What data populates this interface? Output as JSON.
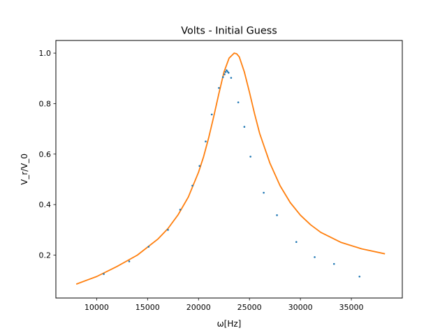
{
  "chart_data": {
    "type": "scatter",
    "title": "Volts - Initial Guess",
    "xlabel": "ω[Hz]",
    "ylabel": "V_r/V_0",
    "xlim": [
      6000,
      40000
    ],
    "ylim": [
      0.03,
      1.05
    ],
    "xticks": [
      10000,
      15000,
      20000,
      25000,
      30000,
      35000
    ],
    "yticks": [
      0.2,
      0.4,
      0.6,
      0.8,
      1.0
    ],
    "xtick_labels": [
      "10000",
      "15000",
      "20000",
      "25000",
      "30000",
      "35000"
    ],
    "ytick_labels": [
      "0.2",
      "0.4",
      "0.6",
      "0.8",
      "1.0"
    ],
    "grid": false,
    "legend": "none",
    "series": [
      {
        "kind": "scatter",
        "color": "#1f77b4",
        "x": [
          10700,
          13200,
          15100,
          17000,
          18200,
          19400,
          20100,
          20700,
          21300,
          22000,
          22400,
          22550,
          22650,
          22750,
          22850,
          22950,
          23200,
          23900,
          24500,
          25100,
          26400,
          27700,
          29600,
          31400,
          33300,
          35800
        ],
        "y": [
          0.125,
          0.175,
          0.233,
          0.3,
          0.38,
          0.475,
          0.553,
          0.65,
          0.757,
          0.862,
          0.905,
          0.916,
          0.925,
          0.932,
          0.927,
          0.922,
          0.902,
          0.805,
          0.708,
          0.59,
          0.447,
          0.358,
          0.252,
          0.192,
          0.165,
          0.115
        ]
      },
      {
        "kind": "line",
        "color": "#ff7f0e",
        "x": [
          8000,
          10000,
          12000,
          14000,
          16000,
          17000,
          18000,
          19000,
          20000,
          20500,
          21000,
          21500,
          22000,
          22500,
          23000,
          23500,
          23750,
          24000,
          24500,
          25000,
          25500,
          26000,
          27000,
          28000,
          29000,
          30000,
          31000,
          32000,
          34000,
          36000,
          38300
        ],
        "y": [
          0.085,
          0.115,
          0.155,
          0.2,
          0.263,
          0.305,
          0.36,
          0.43,
          0.528,
          0.59,
          0.665,
          0.75,
          0.84,
          0.925,
          0.98,
          1.0,
          0.997,
          0.985,
          0.925,
          0.845,
          0.76,
          0.682,
          0.565,
          0.475,
          0.408,
          0.358,
          0.32,
          0.29,
          0.25,
          0.225,
          0.205
        ]
      }
    ]
  }
}
